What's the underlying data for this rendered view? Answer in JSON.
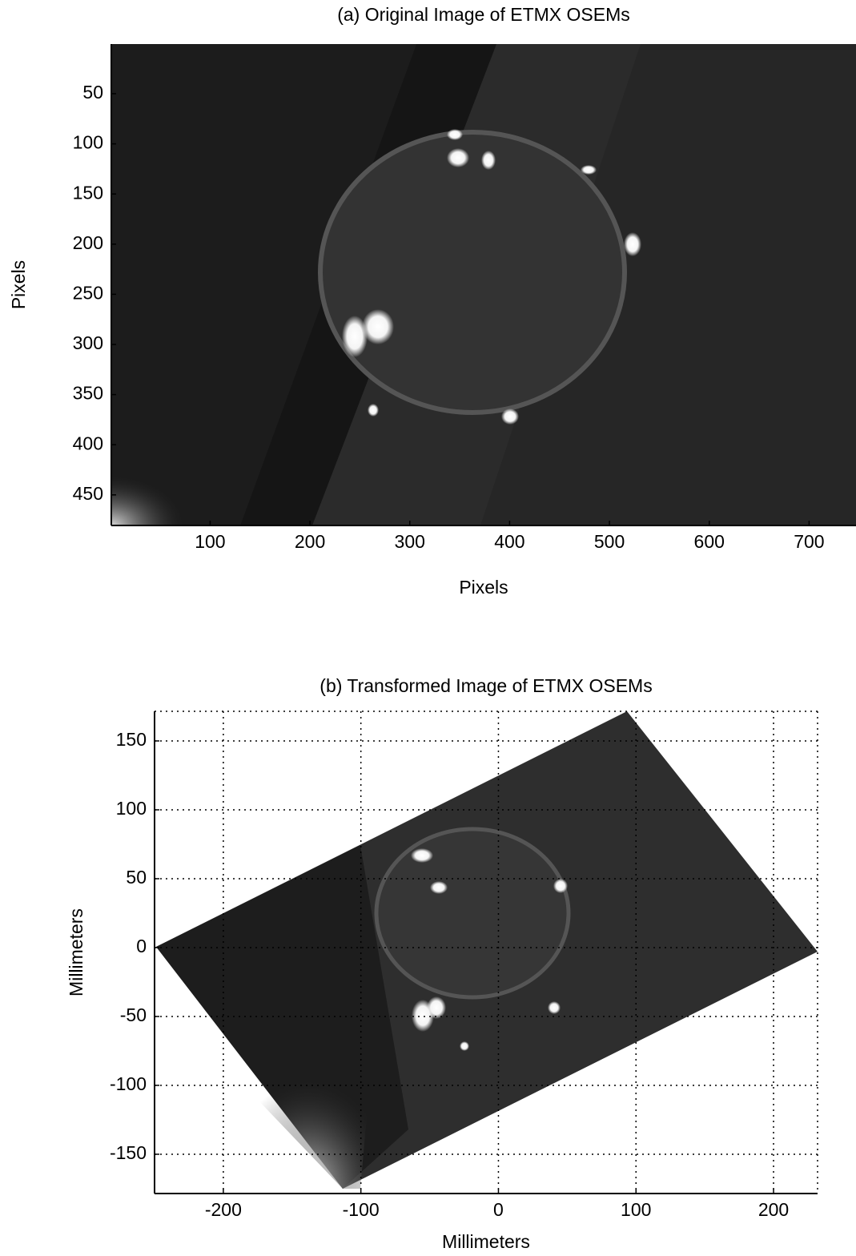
{
  "chart_data": [
    {
      "type": "image",
      "title": "(a) Original Image of ETMX OSEMs",
      "xlabel": "Pixels",
      "ylabel": "Pixels",
      "xlim": [
        1,
        747
      ],
      "xticks": [
        100,
        200,
        300,
        400,
        500,
        600,
        700
      ],
      "ylim": [
        0.5,
        480.5
      ],
      "y_reversed": true,
      "yticks": [
        50,
        100,
        150,
        200,
        250,
        300,
        350,
        400,
        450
      ],
      "grid": false,
      "color": "#000000"
    },
    {
      "type": "image",
      "title": "(b) Transformed Image of ETMX OSEMs",
      "xlabel": "Millimeters",
      "ylabel": "Millimeters",
      "xlim": [
        -250,
        232
      ],
      "xticks": [
        -200,
        -100,
        0,
        100,
        200
      ],
      "ylim": [
        -178.5,
        171.5
      ],
      "y_reversed": false,
      "yticks": [
        -150,
        -100,
        -50,
        0,
        50,
        100,
        150
      ],
      "grid": true,
      "color": "#000000"
    }
  ]
}
